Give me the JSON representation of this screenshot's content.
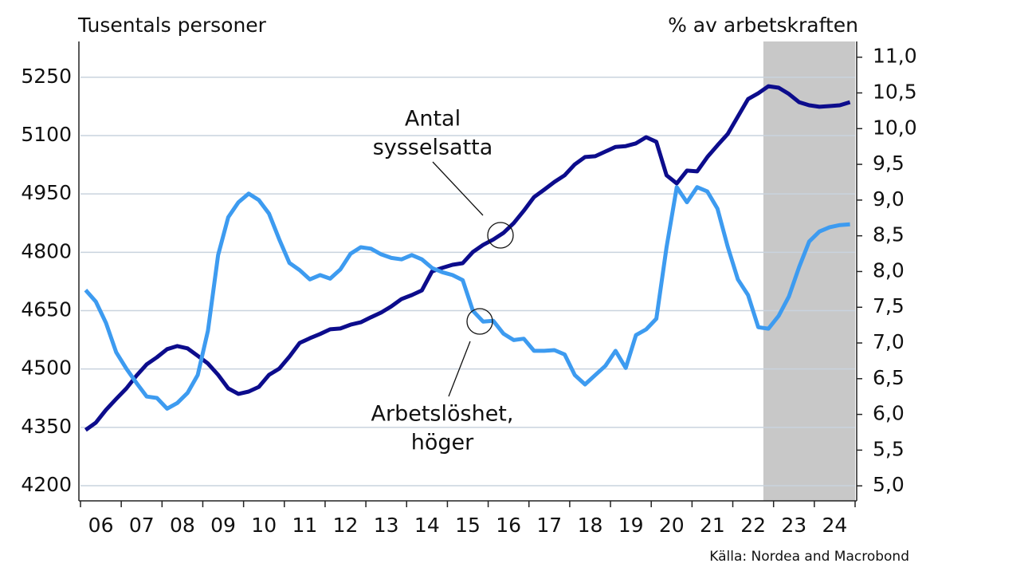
{
  "chart_data": {
    "type": "line",
    "y_axis_title": "Tusentals personer",
    "y2_axis_title": "% av arbetskraften",
    "source": "Källa: Nordea and Macrobond",
    "xlim": [
      2006,
      2025
    ],
    "xticks": [
      {
        "value": 2006,
        "label": "06"
      },
      {
        "value": 2007,
        "label": "07"
      },
      {
        "value": 2008,
        "label": "08"
      },
      {
        "value": 2009,
        "label": "09"
      },
      {
        "value": 2010,
        "label": "10"
      },
      {
        "value": 2011,
        "label": "11"
      },
      {
        "value": 2012,
        "label": "12"
      },
      {
        "value": 2013,
        "label": "13"
      },
      {
        "value": 2014,
        "label": "14"
      },
      {
        "value": 2015,
        "label": "15"
      },
      {
        "value": 2016,
        "label": "16"
      },
      {
        "value": 2017,
        "label": "17"
      },
      {
        "value": 2018,
        "label": "18"
      },
      {
        "value": 2019,
        "label": "19"
      },
      {
        "value": 2020,
        "label": "20"
      },
      {
        "value": 2021,
        "label": "21"
      },
      {
        "value": 2022,
        "label": "22"
      },
      {
        "value": 2023,
        "label": "23"
      },
      {
        "value": 2024,
        "label": "24"
      }
    ],
    "ylim": [
      4161,
      5342
    ],
    "yticks": [
      4200,
      4350,
      4500,
      4650,
      4800,
      4950,
      5100,
      5250
    ],
    "y2lim": [
      4.79,
      11.22
    ],
    "y2ticks": [
      {
        "value": 5,
        "label": "5,0"
      },
      {
        "value": 5.5,
        "label": "5,5"
      },
      {
        "value": 6,
        "label": "6,0"
      },
      {
        "value": 6.5,
        "label": "6,5"
      },
      {
        "value": 7,
        "label": "7,0"
      },
      {
        "value": 7.5,
        "label": "7,5"
      },
      {
        "value": 8,
        "label": "8,0"
      },
      {
        "value": 8.5,
        "label": "8,5"
      },
      {
        "value": 9,
        "label": "9,0"
      },
      {
        "value": 9.5,
        "label": "9,5"
      },
      {
        "value": 10,
        "label": "10,0"
      },
      {
        "value": 10.5,
        "label": "10,5"
      },
      {
        "value": 11,
        "label": "11,0"
      }
    ],
    "grid": true,
    "shaded_region": [
      2022.75,
      2025
    ],
    "shade_color": "#c8c8c8",
    "x": [
      2006.125,
      2006.375,
      2006.625,
      2006.875,
      2007.125,
      2007.375,
      2007.625,
      2007.875,
      2008.125,
      2008.375,
      2008.625,
      2008.875,
      2009.125,
      2009.375,
      2009.625,
      2009.875,
      2010.125,
      2010.375,
      2010.625,
      2010.875,
      2011.125,
      2011.375,
      2011.625,
      2011.875,
      2012.125,
      2012.375,
      2012.625,
      2012.875,
      2013.125,
      2013.375,
      2013.625,
      2013.875,
      2014.125,
      2014.375,
      2014.625,
      2014.875,
      2015.125,
      2015.375,
      2015.625,
      2015.875,
      2016.125,
      2016.375,
      2016.625,
      2016.875,
      2017.125,
      2017.375,
      2017.625,
      2017.875,
      2018.125,
      2018.375,
      2018.625,
      2018.875,
      2019.125,
      2019.375,
      2019.625,
      2019.875,
      2020.125,
      2020.375,
      2020.625,
      2020.875,
      2021.125,
      2021.375,
      2021.625,
      2021.875,
      2022.125,
      2022.375,
      2022.625,
      2022.875,
      2023.125,
      2023.375,
      2023.625,
      2023.875,
      2024.125,
      2024.375,
      2024.625,
      2024.875
    ],
    "series": [
      {
        "color": "#0c0c8c",
        "axis": "y",
        "values": [
          4343,
          4362,
          4395,
          4423,
          4450,
          4483,
          4512,
          4530,
          4551,
          4559,
          4553,
          4534,
          4514,
          4485,
          4450,
          4436,
          4442,
          4454,
          4485,
          4501,
          4532,
          4567,
          4579,
          4590,
          4602,
          4604,
          4614,
          4620,
          4633,
          4645,
          4661,
          4680,
          4690,
          4702,
          4751,
          4760,
          4768,
          4772,
          4801,
          4819,
          4833,
          4850,
          4875,
          4907,
          4942,
          4961,
          4981,
          4998,
          5026,
          5045,
          5047,
          5059,
          5071,
          5073,
          5080,
          5096,
          5084,
          4998,
          4977,
          5010,
          5008,
          5045,
          5075,
          5104,
          5149,
          5194,
          5209,
          5227,
          5223,
          5207,
          5186,
          5178,
          5174,
          5176,
          5178,
          5186
        ]
      },
      {
        "color": "#3d9bf0",
        "axis": "y2",
        "values": [
          7.74,
          7.58,
          7.28,
          6.87,
          6.64,
          6.44,
          6.25,
          6.23,
          6.08,
          6.16,
          6.3,
          6.55,
          7.17,
          8.23,
          8.76,
          8.97,
          9.09,
          9.0,
          8.81,
          8.45,
          8.12,
          8.02,
          7.89,
          7.95,
          7.9,
          8.03,
          8.25,
          8.34,
          8.32,
          8.24,
          8.19,
          8.17,
          8.23,
          8.17,
          8.05,
          7.99,
          7.95,
          7.88,
          7.45,
          7.3,
          7.31,
          7.13,
          7.04,
          7.06,
          6.89,
          6.89,
          6.9,
          6.84,
          6.55,
          6.42,
          6.55,
          6.68,
          6.89,
          6.65,
          7.11,
          7.19,
          7.34,
          8.34,
          9.18,
          8.97,
          9.18,
          9.12,
          8.88,
          8.35,
          7.89,
          7.67,
          7.22,
          7.2,
          7.38,
          7.65,
          8.06,
          8.42,
          8.56,
          8.62,
          8.65,
          8.66
        ]
      }
    ],
    "annotations": [
      {
        "lines": [
          "Antal",
          "sysselsatta"
        ]
      },
      {
        "lines": [
          "Arbetslöshet,",
          "höger"
        ]
      }
    ]
  }
}
